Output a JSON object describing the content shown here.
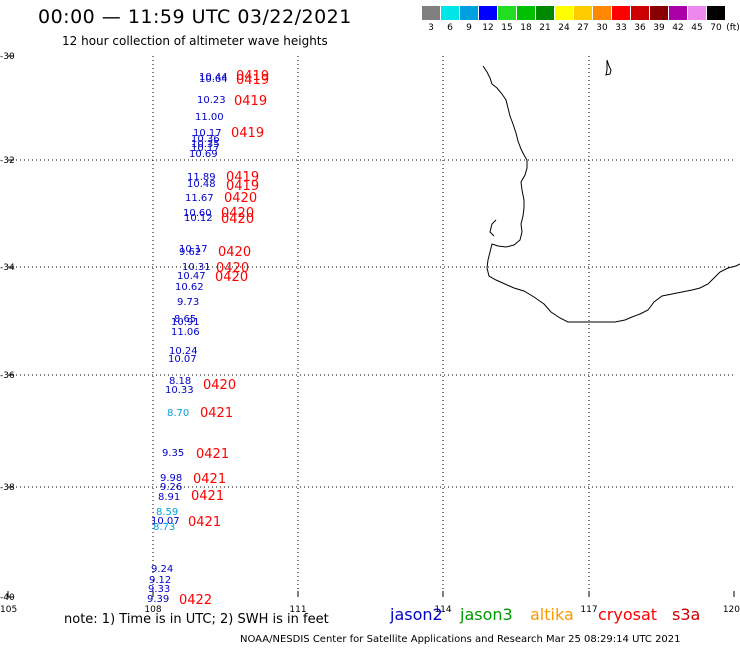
{
  "header": {
    "title": "00:00 — 11:59 UTC 03/22/2021",
    "subtitle": "12 hour collection of altimeter wave heights"
  },
  "color_scale": {
    "unit": "(ft)",
    "swatches": [
      {
        "color": "#808080",
        "label": "3"
      },
      {
        "color": "#00e5e5",
        "label": "6"
      },
      {
        "color": "#00a0e0",
        "label": "9"
      },
      {
        "color": "#0000ff",
        "label": "12"
      },
      {
        "color": "#22dd22",
        "label": "15"
      },
      {
        "color": "#00c000",
        "label": "18"
      },
      {
        "color": "#008800",
        "label": "21"
      },
      {
        "color": "#ffff00",
        "label": "24"
      },
      {
        "color": "#ffcc00",
        "label": "27"
      },
      {
        "color": "#ff8800",
        "label": "30"
      },
      {
        "color": "#ff0000",
        "label": "33"
      },
      {
        "color": "#cc0000",
        "label": "36"
      },
      {
        "color": "#880000",
        "label": "39"
      },
      {
        "color": "#aa00aa",
        "label": "42"
      },
      {
        "color": "#ee88ee",
        "label": "45"
      },
      {
        "color": "#000000",
        "label": "70"
      }
    ]
  },
  "map": {
    "lat_labels": [
      "-30",
      "-32",
      "-34",
      "-36",
      "-38",
      "-40"
    ],
    "lon_labels": [
      "105",
      "108",
      "111",
      "114",
      "117",
      "120"
    ],
    "colors": {
      "dark_blue": "#0000cc",
      "light_blue": "#00a0e0",
      "red": "#ff0000"
    },
    "heights": [
      {
        "text": "10.44",
        "color": "dark_blue"
      },
      {
        "text": "10.64",
        "color": "dark_blue"
      },
      {
        "text": "10.23",
        "color": "dark_blue"
      },
      {
        "text": "11.00",
        "color": "dark_blue"
      },
      {
        "text": "10.17",
        "color": "dark_blue"
      },
      {
        "text": "10.36",
        "color": "dark_blue"
      },
      {
        "text": "10.35",
        "color": "dark_blue"
      },
      {
        "text": "10.17",
        "color": "dark_blue"
      },
      {
        "text": "10.69",
        "color": "dark_blue"
      },
      {
        "text": "11.89",
        "color": "dark_blue"
      },
      {
        "text": "10.48",
        "color": "dark_blue"
      },
      {
        "text": "11.67",
        "color": "dark_blue"
      },
      {
        "text": "10.60",
        "color": "dark_blue"
      },
      {
        "text": "10.12",
        "color": "dark_blue"
      },
      {
        "text": "10.17",
        "color": "dark_blue"
      },
      {
        "text": "9.62",
        "color": "dark_blue"
      },
      {
        "text": "10.31",
        "color": "dark_blue"
      },
      {
        "text": "10.47",
        "color": "dark_blue"
      },
      {
        "text": "10.62",
        "color": "dark_blue"
      },
      {
        "text": "9.73",
        "color": "dark_blue"
      },
      {
        "text": "8.65",
        "color": "dark_blue"
      },
      {
        "text": "10.91",
        "color": "dark_blue"
      },
      {
        "text": "11.06",
        "color": "dark_blue"
      },
      {
        "text": "10.24",
        "color": "dark_blue"
      },
      {
        "text": "10.07",
        "color": "dark_blue"
      },
      {
        "text": "8.18",
        "color": "dark_blue"
      },
      {
        "text": "10.33",
        "color": "dark_blue"
      },
      {
        "text": "8.70",
        "color": "light_blue"
      },
      {
        "text": "9.35",
        "color": "dark_blue"
      },
      {
        "text": "9.98",
        "color": "dark_blue"
      },
      {
        "text": "9.26",
        "color": "dark_blue"
      },
      {
        "text": "8.91",
        "color": "dark_blue"
      },
      {
        "text": "8.59",
        "color": "light_blue"
      },
      {
        "text": "10.07",
        "color": "dark_blue"
      },
      {
        "text": "8.73",
        "color": "light_blue"
      },
      {
        "text": "9.24",
        "color": "dark_blue"
      },
      {
        "text": "9.12",
        "color": "dark_blue"
      },
      {
        "text": "9.33",
        "color": "dark_blue"
      },
      {
        "text": "9.39",
        "color": "dark_blue"
      }
    ],
    "pass_labels": [
      {
        "text": "0419"
      },
      {
        "text": "0419"
      },
      {
        "text": "0419"
      },
      {
        "text": "0419"
      },
      {
        "text": "0419"
      },
      {
        "text": "0419"
      },
      {
        "text": "0420"
      },
      {
        "text": "0420"
      },
      {
        "text": "0420"
      },
      {
        "text": "0420"
      },
      {
        "text": "0420"
      },
      {
        "text": "0420"
      },
      {
        "text": "0420"
      },
      {
        "text": "0421"
      },
      {
        "text": "0421"
      },
      {
        "text": "0421"
      },
      {
        "text": "0421"
      },
      {
        "text": "0421"
      },
      {
        "text": "0422"
      }
    ]
  },
  "footer": {
    "note": "note:  1) Time is in UTC;  2) SWH is in feet",
    "credit": "NOAA/NESDIS Center for Satellite Applications and Research    Mar 25 08:29:14 UTC 2021",
    "satellites": [
      {
        "name": "jason2",
        "color": "#0000cc"
      },
      {
        "name": "jason3",
        "color": "#009900"
      },
      {
        "name": "altika",
        "color": "#ff9900"
      },
      {
        "name": "cryosat",
        "color": "#ff0000"
      },
      {
        "name": "s3a",
        "color": "#cc0000"
      }
    ]
  }
}
